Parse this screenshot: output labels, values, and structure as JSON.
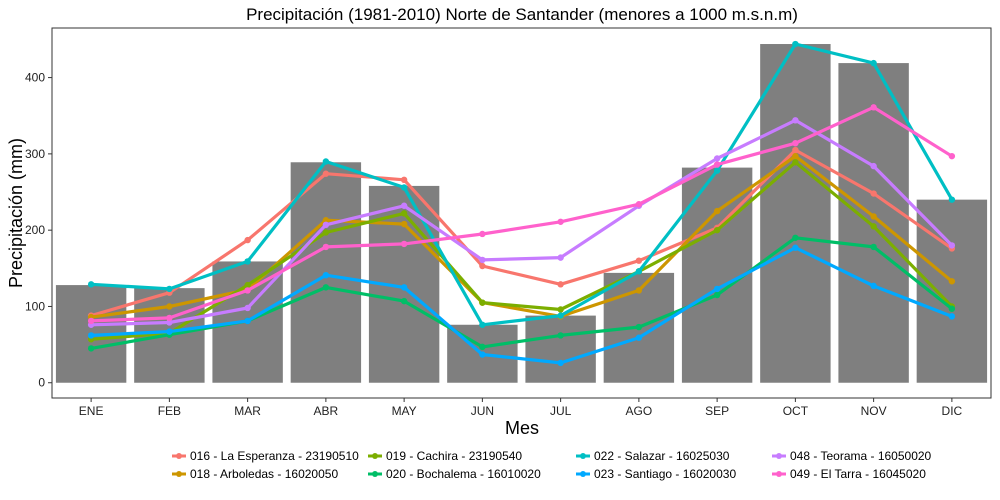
{
  "chart_data": {
    "type": "bar+line",
    "title": "Precipitación (1981-2010) Norte de Santander (menores a 1000 m.s.n.m)",
    "xlabel": "Mes",
    "ylabel": "Precipitación (mm)",
    "categories": [
      "ENE",
      "FEB",
      "MAR",
      "ABR",
      "MAY",
      "JUN",
      "JUL",
      "AGO",
      "SEP",
      "OCT",
      "NOV",
      "DIC"
    ],
    "ylim": [
      -20,
      465
    ],
    "yticks": [
      0,
      100,
      200,
      300,
      400
    ],
    "grid": false,
    "bar_color": "#7f7f7f",
    "bars": [
      128,
      124,
      159,
      289,
      258,
      76,
      88,
      144,
      282,
      444,
      419,
      240
    ],
    "legend_position": "bottom",
    "series": [
      {
        "name": "016 - La Esperanza - 23190510",
        "color": "#F8766D",
        "values": [
          88,
          118,
          187,
          274,
          266,
          153,
          129,
          160,
          203,
          305,
          248,
          176
        ]
      },
      {
        "name": "018 - Arboledas - 16020050",
        "color": "#CD9600",
        "values": [
          86,
          100,
          122,
          213,
          208,
          105,
          87,
          121,
          225,
          297,
          218,
          133
        ]
      },
      {
        "name": "019 - Cachira - 23190540",
        "color": "#7CAE00",
        "values": [
          57,
          65,
          128,
          197,
          222,
          105,
          96,
          146,
          200,
          289,
          205,
          100
        ]
      },
      {
        "name": "020 - Bochalema - 16010020",
        "color": "#00BE67",
        "values": [
          45,
          63,
          81,
          125,
          107,
          47,
          62,
          73,
          115,
          190,
          178,
          97
        ]
      },
      {
        "name": "022 - Salazar - 16025030",
        "color": "#00BFC4",
        "values": [
          129,
          123,
          159,
          290,
          256,
          76,
          88,
          146,
          278,
          444,
          419,
          240
        ]
      },
      {
        "name": "023 - Santiago - 16020030",
        "color": "#00A9FF",
        "values": [
          62,
          67,
          81,
          141,
          125,
          37,
          26,
          59,
          123,
          177,
          127,
          87
        ]
      },
      {
        "name": "048 - Teorama - 16050020",
        "color": "#C77CFF",
        "values": [
          76,
          79,
          98,
          207,
          232,
          161,
          164,
          232,
          294,
          344,
          284,
          180
        ]
      },
      {
        "name": "049 - El Tarra - 16045020",
        "color": "#FF61CC",
        "values": [
          81,
          85,
          121,
          178,
          182,
          195,
          211,
          234,
          286,
          314,
          361,
          297
        ]
      }
    ]
  }
}
